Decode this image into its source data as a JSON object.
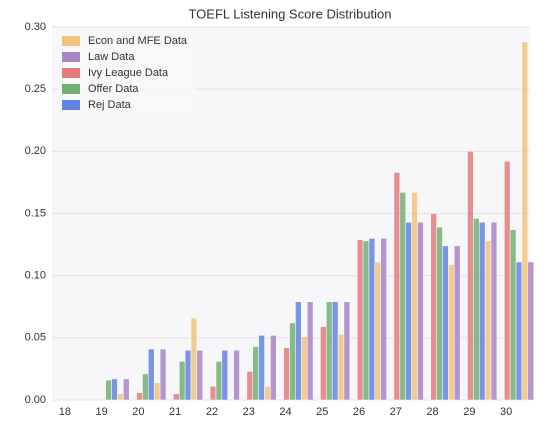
{
  "chart_data": {
    "type": "bar",
    "title": "TOEFL Listening Score Distribution",
    "categories": [
      "18",
      "19",
      "20",
      "21",
      "22",
      "23",
      "24",
      "25",
      "26",
      "27",
      "28",
      "29",
      "30"
    ],
    "series": [
      {
        "name": "Econ and MFE Data",
        "color": "#f2c37f",
        "values": [
          0,
          0.005,
          0.014,
          0.066,
          0,
          0.011,
          0.051,
          0.053,
          0.111,
          0.167,
          0.109,
          0.128,
          0.288
        ]
      },
      {
        "name": "Law Data",
        "color": "#a785c4",
        "values": [
          0,
          0.017,
          0.041,
          0.04,
          0.04,
          0.052,
          0.079,
          0.079,
          0.13,
          0.143,
          0.124,
          0.143,
          0.111
        ]
      },
      {
        "name": "Ivy League Data",
        "color": "#e27c7c",
        "values": [
          0,
          0,
          0.006,
          0.005,
          0.011,
          0.023,
          0.042,
          0.059,
          0.129,
          0.183,
          0.15,
          0.2,
          0.192
        ]
      },
      {
        "name": "Offer Data",
        "color": "#72b072",
        "values": [
          0,
          0.016,
          0.021,
          0.031,
          0.031,
          0.043,
          0.062,
          0.079,
          0.128,
          0.167,
          0.139,
          0.146,
          0.137
        ]
      },
      {
        "name": "Rej Data",
        "color": "#6384e0",
        "values": [
          0,
          0.017,
          0.041,
          0.04,
          0.04,
          0.052,
          0.079,
          0.079,
          0.13,
          0.143,
          0.124,
          0.143,
          0.111
        ]
      }
    ],
    "ylim": [
      0,
      0.3
    ],
    "yticks": [
      {
        "value": 0,
        "label": "0.00"
      },
      {
        "value": 0.05,
        "label": "0.05"
      },
      {
        "value": 0.1,
        "label": "0.10"
      },
      {
        "value": 0.15,
        "label": "0.15"
      },
      {
        "value": 0.2,
        "label": "0.20"
      },
      {
        "value": 0.25,
        "label": "0.25"
      },
      {
        "value": 0.3,
        "label": "0.30"
      }
    ],
    "grid": true,
    "legend": "upper-left"
  }
}
